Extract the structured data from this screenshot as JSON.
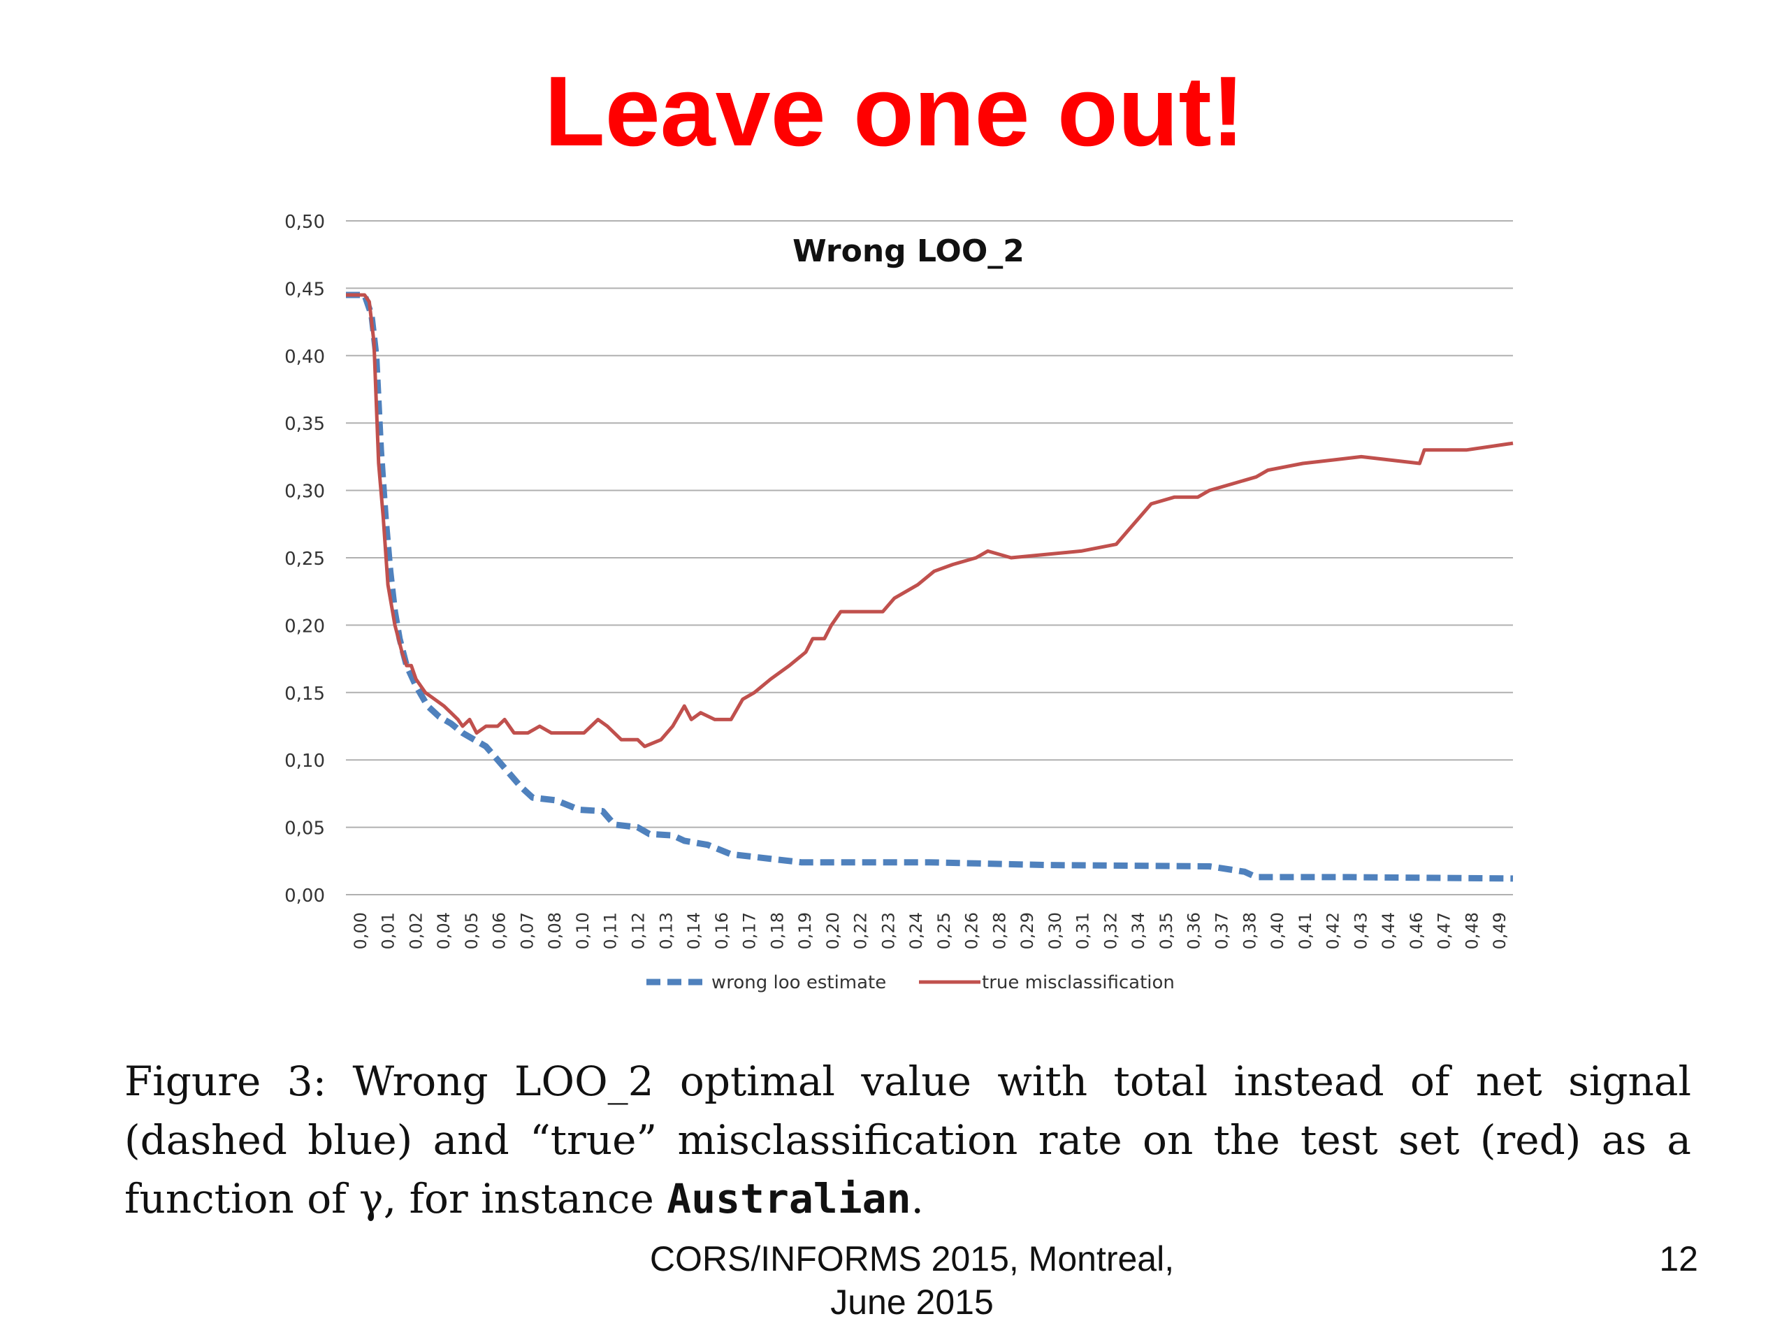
{
  "slide": {
    "title": "Leave one out!",
    "footer": [
      "CORS/INFORMS 2015, Montreal,",
      "June 2015"
    ],
    "page_number": "12"
  },
  "caption": {
    "part1": "Figure 3: Wrong LOO_2 optimal value with total instead of net signal (dashed blue) and “true” misclassification rate on the test set (red) as a function of γ, for instance ",
    "instance": "Australian",
    "part2": "."
  },
  "colors": {
    "title": "#ff0000",
    "wrong_loo": "#4f81bd",
    "true_misclass": "#c0504d",
    "grid": "#b0b0b0"
  },
  "chart_data": {
    "type": "line",
    "title": "Wrong LOO_2",
    "xlabel": "",
    "ylabel": "",
    "ylim": [
      0,
      0.5
    ],
    "y_ticks": [
      "0,00",
      "0,05",
      "0,10",
      "0,15",
      "0,20",
      "0,25",
      "0,30",
      "0,35",
      "0,40",
      "0,45",
      "0,50"
    ],
    "x_tick_labels": [
      "0,00",
      "0,01",
      "0,02",
      "0,04",
      "0,05",
      "0,06",
      "0,07",
      "0,08",
      "0,10",
      "0,11",
      "0,12",
      "0,13",
      "0,14",
      "0,16",
      "0,17",
      "0,18",
      "0,19",
      "0,20",
      "0,22",
      "0,23",
      "0,24",
      "0,25",
      "0,26",
      "0,28",
      "0,29",
      "0,30",
      "0,31",
      "0,32",
      "0,34",
      "0,35",
      "0,36",
      "0,37",
      "0,38",
      "0,40",
      "0,41",
      "0,42",
      "0,43",
      "0,44",
      "0,46",
      "0,47",
      "0,48",
      "0,49"
    ],
    "grid": true,
    "legend_position": "bottom",
    "series": [
      {
        "name": "wrong loo estimate",
        "style": "dashed",
        "points": [
          [
            0,
            0.445
          ],
          [
            0.008,
            0.445
          ],
          [
            0.011,
            0.43
          ],
          [
            0.013,
            0.4
          ],
          [
            0.015,
            0.33
          ],
          [
            0.017,
            0.28
          ],
          [
            0.019,
            0.24
          ],
          [
            0.021,
            0.21
          ],
          [
            0.023,
            0.19
          ],
          [
            0.026,
            0.17
          ],
          [
            0.03,
            0.155
          ],
          [
            0.035,
            0.14
          ],
          [
            0.04,
            0.132
          ],
          [
            0.045,
            0.127
          ],
          [
            0.05,
            0.12
          ],
          [
            0.055,
            0.115
          ],
          [
            0.06,
            0.11
          ],
          [
            0.065,
            0.1
          ],
          [
            0.07,
            0.09
          ],
          [
            0.075,
            0.08
          ],
          [
            0.08,
            0.072
          ],
          [
            0.09,
            0.07
          ],
          [
            0.1,
            0.063
          ],
          [
            0.11,
            0.062
          ],
          [
            0.115,
            0.052
          ],
          [
            0.125,
            0.05
          ],
          [
            0.13,
            0.045
          ],
          [
            0.14,
            0.044
          ],
          [
            0.145,
            0.04
          ],
          [
            0.155,
            0.037
          ],
          [
            0.165,
            0.03
          ],
          [
            0.175,
            0.028
          ],
          [
            0.185,
            0.026
          ],
          [
            0.195,
            0.024
          ],
          [
            0.21,
            0.024
          ],
          [
            0.25,
            0.024
          ],
          [
            0.3,
            0.022
          ],
          [
            0.37,
            0.021
          ],
          [
            0.385,
            0.017
          ],
          [
            0.39,
            0.013
          ],
          [
            0.43,
            0.013
          ],
          [
            0.5,
            0.012
          ]
        ]
      },
      {
        "name": "true misclassification",
        "style": "solid",
        "points": [
          [
            0,
            0.445
          ],
          [
            0.008,
            0.445
          ],
          [
            0.01,
            0.44
          ],
          [
            0.012,
            0.41
          ],
          [
            0.014,
            0.32
          ],
          [
            0.016,
            0.28
          ],
          [
            0.018,
            0.23
          ],
          [
            0.021,
            0.2
          ],
          [
            0.024,
            0.18
          ],
          [
            0.026,
            0.17
          ],
          [
            0.028,
            0.17
          ],
          [
            0.03,
            0.16
          ],
          [
            0.034,
            0.15
          ],
          [
            0.038,
            0.145
          ],
          [
            0.042,
            0.14
          ],
          [
            0.045,
            0.135
          ],
          [
            0.048,
            0.13
          ],
          [
            0.05,
            0.125
          ],
          [
            0.053,
            0.13
          ],
          [
            0.056,
            0.12
          ],
          [
            0.06,
            0.125
          ],
          [
            0.065,
            0.125
          ],
          [
            0.068,
            0.13
          ],
          [
            0.072,
            0.12
          ],
          [
            0.078,
            0.12
          ],
          [
            0.083,
            0.125
          ],
          [
            0.088,
            0.12
          ],
          [
            0.095,
            0.12
          ],
          [
            0.102,
            0.12
          ],
          [
            0.108,
            0.13
          ],
          [
            0.112,
            0.125
          ],
          [
            0.118,
            0.115
          ],
          [
            0.125,
            0.115
          ],
          [
            0.128,
            0.11
          ],
          [
            0.135,
            0.115
          ],
          [
            0.14,
            0.125
          ],
          [
            0.145,
            0.14
          ],
          [
            0.148,
            0.13
          ],
          [
            0.152,
            0.135
          ],
          [
            0.158,
            0.13
          ],
          [
            0.165,
            0.13
          ],
          [
            0.17,
            0.145
          ],
          [
            0.175,
            0.15
          ],
          [
            0.182,
            0.16
          ],
          [
            0.19,
            0.17
          ],
          [
            0.197,
            0.18
          ],
          [
            0.2,
            0.19
          ],
          [
            0.205,
            0.19
          ],
          [
            0.208,
            0.2
          ],
          [
            0.212,
            0.21
          ],
          [
            0.23,
            0.21
          ],
          [
            0.235,
            0.22
          ],
          [
            0.24,
            0.225
          ],
          [
            0.245,
            0.23
          ],
          [
            0.252,
            0.24
          ],
          [
            0.26,
            0.245
          ],
          [
            0.27,
            0.25
          ],
          [
            0.275,
            0.255
          ],
          [
            0.285,
            0.25
          ],
          [
            0.315,
            0.255
          ],
          [
            0.33,
            0.26
          ],
          [
            0.335,
            0.27
          ],
          [
            0.34,
            0.28
          ],
          [
            0.345,
            0.29
          ],
          [
            0.355,
            0.295
          ],
          [
            0.365,
            0.295
          ],
          [
            0.37,
            0.3
          ],
          [
            0.38,
            0.305
          ],
          [
            0.39,
            0.31
          ],
          [
            0.395,
            0.315
          ],
          [
            0.41,
            0.32
          ],
          [
            0.435,
            0.325
          ],
          [
            0.46,
            0.32
          ],
          [
            0.462,
            0.33
          ],
          [
            0.48,
            0.33
          ],
          [
            0.5,
            0.335
          ]
        ]
      }
    ]
  }
}
